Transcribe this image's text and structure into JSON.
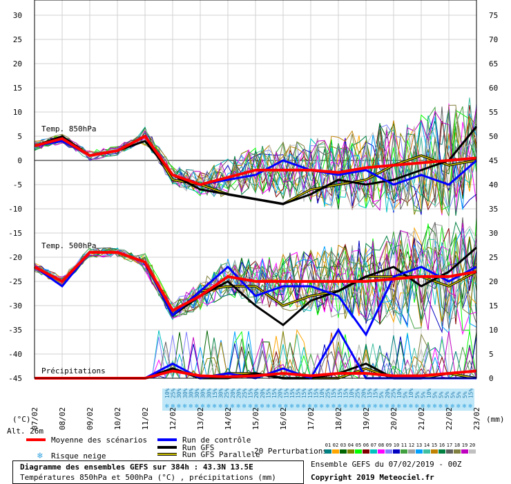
{
  "chart_data": [
    {
      "type": "line",
      "panel": "temperature-precipitation",
      "x": [
        "07/02",
        "08/02",
        "09/02",
        "10/02",
        "11/02",
        "12/02",
        "13/02",
        "14/02",
        "15/02",
        "16/02",
        "17/02",
        "18/02",
        "19/02",
        "20/02",
        "21/02",
        "22/02",
        "23/02"
      ],
      "ylim_left": [
        -45,
        30
      ],
      "yticks_left": [
        "30",
        "25",
        "20",
        "15",
        "10",
        "5",
        "0",
        "-5",
        "-10",
        "-15",
        "-20",
        "-25",
        "-30",
        "-35",
        "-40",
        "-45"
      ],
      "ylim_right": [
        0,
        75
      ],
      "yticks_right": [
        "75",
        "70",
        "65",
        "60",
        "55",
        "50",
        "45",
        "40",
        "35",
        "30",
        "25",
        "20",
        "15",
        "10",
        "5",
        "0"
      ],
      "left_axis_label": "(°C)",
      "right_axis_label": "(mm)",
      "alt_label": "Alt. 26m",
      "labels": {
        "t850": "Temp. 850hPa",
        "t500": "Temp. 500hPa",
        "precip": "Précipitations"
      },
      "series": [
        {
          "name": "Moyenne des scénarios",
          "color": "#ff0000",
          "t850": [
            3,
            4.5,
            1,
            2,
            5,
            -3,
            -5,
            -3.5,
            -2,
            -2,
            -2,
            -2.5,
            -1.5,
            -1,
            -0.5,
            0,
            0.5
          ],
          "t500": [
            -22,
            -25,
            -19,
            -19,
            -21,
            -31,
            -28,
            -24,
            -25,
            -25,
            -25,
            -25,
            -25,
            -24.5,
            -24,
            -24,
            -23
          ],
          "precip": [
            0,
            0,
            0,
            0,
            0,
            1.5,
            0.5,
            0.3,
            0.5,
            1,
            0.5,
            1,
            1,
            0.5,
            0.5,
            1,
            1.5
          ]
        },
        {
          "name": "Run de contrôle",
          "color": "#0000ff",
          "t850": [
            3,
            4,
            1,
            2,
            5,
            -3,
            -5,
            -4,
            -3,
            0,
            -2,
            -3,
            -2,
            -5,
            -3,
            -5,
            0
          ],
          "t500": [
            -22,
            -26,
            -19,
            -19,
            -21,
            -32,
            -27,
            -22,
            -28,
            -26,
            -26,
            -28,
            -36,
            -24,
            -22,
            -25,
            -22
          ],
          "precip": [
            0,
            0,
            0,
            0,
            0,
            3,
            0,
            1,
            0,
            2,
            0,
            10,
            0,
            0,
            0,
            0,
            0
          ]
        },
        {
          "name": "Run GFS",
          "color": "#000000",
          "t850": [
            3,
            5,
            1,
            2,
            4,
            -3,
            -6,
            -7,
            -8,
            -9,
            -7,
            -4,
            -5,
            -4,
            -2,
            0,
            7
          ],
          "t500": [
            -22,
            -25,
            -19,
            -19,
            -21,
            -32,
            -28,
            -25,
            -30,
            -34,
            -29,
            -27,
            -24,
            -22,
            -26,
            -23,
            -18
          ],
          "precip": [
            0,
            0,
            0,
            0,
            0,
            2,
            0,
            0,
            1,
            0,
            0,
            1,
            3,
            0,
            0,
            0,
            0
          ]
        },
        {
          "name": "Run GFS Parallele",
          "color": "#d4c800",
          "outline": "#000000",
          "t850": [
            3,
            4.5,
            1,
            2,
            5,
            -4,
            -5,
            -7,
            -8,
            -9,
            -6,
            -5,
            -4,
            -1,
            1,
            -1,
            0
          ],
          "t500": [
            -22,
            -25,
            -19,
            -19,
            -21,
            -32,
            -27,
            -26,
            -26,
            -30,
            -28,
            -27,
            -24,
            -24,
            -24,
            -26,
            -23
          ],
          "precip": [
            0,
            0,
            0,
            0,
            0,
            2,
            0,
            1,
            1,
            0,
            0,
            0,
            2,
            0,
            0,
            1,
            0
          ]
        }
      ],
      "perturbations_label": "20 Perturbations",
      "perturbation_ids": [
        "01",
        "02",
        "03",
        "04",
        "05",
        "06",
        "07",
        "08",
        "09",
        "10",
        "11",
        "12",
        "13",
        "14",
        "15",
        "16",
        "17",
        "18",
        "19",
        "20"
      ],
      "perturbation_colors": [
        "#008080",
        "#ffa500",
        "#006400",
        "#808000",
        "#00ff00",
        "#800000",
        "#00c0c0",
        "#ff00ff",
        "#8080ff",
        "#0000c0",
        "#40a040",
        "#a0a0a0",
        "#00a0ff",
        "#40c0a0",
        "#c08000",
        "#008040",
        "#606060",
        "#808040",
        "#c000c0",
        "#c0c0c0"
      ],
      "snow_risk_label": "Risque neige",
      "snow_risk_pct": [
        "10%",
        "25%",
        "30%",
        "30%",
        "30%",
        "30%",
        "30%",
        "30%",
        "15%",
        "30%",
        "25%",
        "20%",
        "20%",
        "25%",
        "15%",
        "20%",
        "20%",
        "15%",
        "15%",
        "20%",
        "15%",
        "15%",
        "15%",
        "15%",
        "15%",
        "15%",
        "10%",
        "25%",
        "15%",
        "15%",
        "15%",
        "10%",
        "25%",
        "20%",
        "15%",
        "15%",
        "5%",
        "20%",
        "25%",
        "10%",
        "5%",
        "10%",
        "5%",
        "5%",
        "10%",
        "5%",
        "5%",
        "5%",
        "5%",
        "5%",
        "5%",
        "15%"
      ],
      "legend_position": "bottom"
    }
  ],
  "legend": {
    "mean": "Moyenne des scénarios",
    "control": "Run de contrôle",
    "gfs": "Run GFS",
    "gfs_par": "Run GFS Parallele",
    "snow": "Risque neige",
    "perturbations": "20 Perturbations"
  },
  "title": {
    "line1": "Diagramme des ensembles GEFS sur 384h : 43.3N 13.5E",
    "line2": "Températures 850hPa et 500hPa (°C) , précipitations (mm)"
  },
  "footer": {
    "run": "Ensemble GEFS du 07/02/2019 - 00Z",
    "copyright": "Copyright 2019 Meteociel.fr"
  },
  "colors": {
    "mean": "#ff0000",
    "control": "#0000ff",
    "gfs": "#000000",
    "snow_bg": "#bfe7f7",
    "snow_icon": "#3aa6e0"
  }
}
